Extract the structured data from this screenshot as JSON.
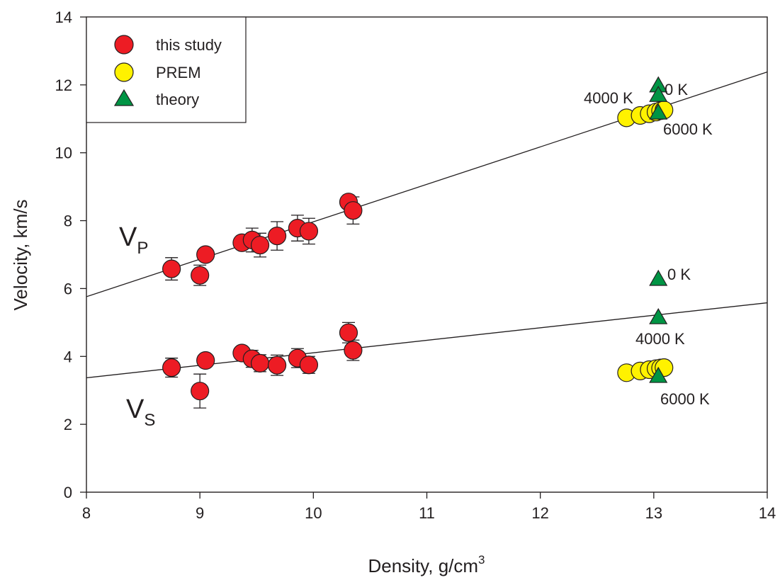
{
  "chart_data": {
    "type": "scatter",
    "xlabel": "Density, g/cm",
    "xlabel_superscript": "3",
    "ylabel": "Velocity, km/s",
    "xlim": [
      8,
      14
    ],
    "ylim": [
      0,
      14
    ],
    "xticks": [
      8,
      9,
      10,
      11,
      12,
      13,
      14
    ],
    "yticks": [
      0,
      2,
      4,
      6,
      8,
      10,
      12,
      14
    ],
    "grid": false,
    "legend_position": "top-left",
    "legend": [
      {
        "label": "this study",
        "marker": "circle",
        "color": "#ed1c24"
      },
      {
        "label": "PREM",
        "marker": "circle",
        "color": "#fff200"
      },
      {
        "label": "theory",
        "marker": "triangle",
        "color": "#009444"
      }
    ],
    "curve_labels": {
      "vp": {
        "main": "V",
        "sub": "P"
      },
      "vs": {
        "main": "V",
        "sub": "S"
      }
    },
    "series": [
      {
        "name": "this study",
        "marker": "circle",
        "color": "#ed1c24",
        "group": "VP",
        "points": [
          {
            "x": 8.75,
            "y": 6.58,
            "err": 0.33
          },
          {
            "x": 9.0,
            "y": 6.39,
            "err": 0.3
          },
          {
            "x": 9.05,
            "y": 7.0,
            "err": 0.0
          },
          {
            "x": 9.37,
            "y": 7.35,
            "err": 0.0
          },
          {
            "x": 9.46,
            "y": 7.43,
            "err": 0.35
          },
          {
            "x": 9.53,
            "y": 7.28,
            "err": 0.35
          },
          {
            "x": 9.68,
            "y": 7.55,
            "err": 0.42
          },
          {
            "x": 9.86,
            "y": 7.78,
            "err": 0.38
          },
          {
            "x": 9.96,
            "y": 7.69,
            "err": 0.38
          },
          {
            "x": 10.31,
            "y": 8.55,
            "err": 0.0
          },
          {
            "x": 10.35,
            "y": 8.3,
            "err": 0.4
          }
        ]
      },
      {
        "name": "this study",
        "marker": "circle",
        "color": "#ed1c24",
        "group": "VS",
        "points": [
          {
            "x": 8.75,
            "y": 3.67,
            "err": 0.28
          },
          {
            "x": 9.0,
            "y": 2.98,
            "err": 0.5
          },
          {
            "x": 9.05,
            "y": 3.88,
            "err": 0.0
          },
          {
            "x": 9.37,
            "y": 4.1,
            "err": 0.0
          },
          {
            "x": 9.46,
            "y": 3.93,
            "err": 0.25
          },
          {
            "x": 9.53,
            "y": 3.8,
            "err": 0.25
          },
          {
            "x": 9.68,
            "y": 3.74,
            "err": 0.3
          },
          {
            "x": 9.86,
            "y": 3.95,
            "err": 0.28
          },
          {
            "x": 9.96,
            "y": 3.75,
            "err": 0.25
          },
          {
            "x": 10.31,
            "y": 4.7,
            "err": 0.3
          },
          {
            "x": 10.35,
            "y": 4.18,
            "err": 0.3
          }
        ]
      },
      {
        "name": "PREM",
        "marker": "circle",
        "color": "#fff200",
        "group": "VP",
        "points": [
          {
            "x": 12.76,
            "y": 11.03
          },
          {
            "x": 12.88,
            "y": 11.1
          },
          {
            "x": 12.96,
            "y": 11.15
          },
          {
            "x": 13.02,
            "y": 11.2
          },
          {
            "x": 13.06,
            "y": 11.24
          },
          {
            "x": 13.09,
            "y": 11.26
          }
        ]
      },
      {
        "name": "PREM",
        "marker": "circle",
        "color": "#fff200",
        "group": "VS",
        "points": [
          {
            "x": 12.76,
            "y": 3.52
          },
          {
            "x": 12.88,
            "y": 3.57
          },
          {
            "x": 12.96,
            "y": 3.61
          },
          {
            "x": 13.02,
            "y": 3.64
          },
          {
            "x": 13.06,
            "y": 3.66
          },
          {
            "x": 13.09,
            "y": 3.67
          }
        ]
      },
      {
        "name": "theory",
        "marker": "triangle",
        "color": "#009444",
        "group": "VP",
        "points": [
          {
            "x": 13.04,
            "y": 11.98,
            "label": "0 K"
          },
          {
            "x": 13.04,
            "y": 11.7,
            "label": "4000 K"
          },
          {
            "x": 13.04,
            "y": 11.18,
            "label": "6000 K"
          }
        ]
      },
      {
        "name": "theory",
        "marker": "triangle",
        "color": "#009444",
        "group": "VS",
        "points": [
          {
            "x": 13.04,
            "y": 6.28,
            "label": "0 K"
          },
          {
            "x": 13.04,
            "y": 5.15,
            "label": "4000 K"
          },
          {
            "x": 13.04,
            "y": 3.42,
            "label": "6000 K"
          }
        ]
      }
    ],
    "fit_lines": [
      {
        "group": "VP",
        "x": [
          8,
          14
        ],
        "y": [
          5.76,
          12.38
        ]
      },
      {
        "group": "VS",
        "x": [
          8,
          14
        ],
        "y": [
          3.37,
          5.58
        ]
      }
    ]
  }
}
